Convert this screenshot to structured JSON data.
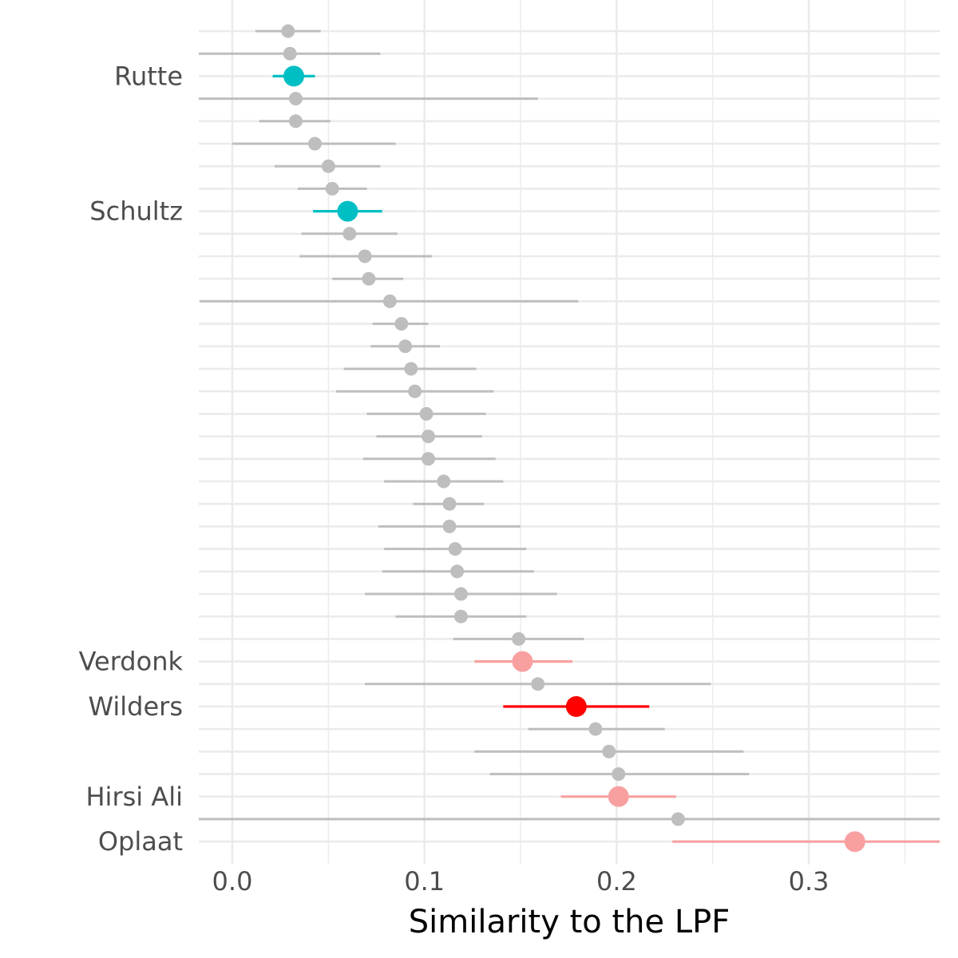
{
  "chart_data": {
    "type": "scatter",
    "subtype": "dot-and-whisker",
    "xlabel": "Similarity to the LPF",
    "ylabel": "",
    "xlim": [
      -0.02,
      0.37
    ],
    "x_ticks": [
      0.0,
      0.1,
      0.2,
      0.3
    ],
    "x_tick_labels": [
      "0.0",
      "0.1",
      "0.2",
      "0.3"
    ],
    "grid": true,
    "legend": "none",
    "colors": {
      "other": "#bebebe",
      "cyan": "#00bfc4",
      "pink": "#f8a0a0",
      "red": "#ff0000",
      "grid": "#ebebeb",
      "tick_text": "#4d4d4d",
      "title_text": "#000000"
    },
    "rows": [
      {
        "label": "",
        "value": 0.029,
        "low": 0.012,
        "high": 0.046,
        "group": "other"
      },
      {
        "label": "",
        "value": 0.03,
        "low": -0.02,
        "high": 0.077,
        "group": "other"
      },
      {
        "label": "Rutte",
        "value": 0.032,
        "low": 0.021,
        "high": 0.043,
        "group": "cyan"
      },
      {
        "label": "",
        "value": 0.033,
        "low": -0.02,
        "high": 0.159,
        "group": "other"
      },
      {
        "label": "",
        "value": 0.033,
        "low": 0.014,
        "high": 0.051,
        "group": "other"
      },
      {
        "label": "",
        "value": 0.043,
        "low": 0.0,
        "high": 0.085,
        "group": "other"
      },
      {
        "label": "",
        "value": 0.05,
        "low": 0.022,
        "high": 0.077,
        "group": "other"
      },
      {
        "label": "",
        "value": 0.052,
        "low": 0.034,
        "high": 0.07,
        "group": "other"
      },
      {
        "label": "Schultz",
        "value": 0.06,
        "low": 0.042,
        "high": 0.078,
        "group": "cyan"
      },
      {
        "label": "",
        "value": 0.061,
        "low": 0.036,
        "high": 0.086,
        "group": "other"
      },
      {
        "label": "",
        "value": 0.069,
        "low": 0.035,
        "high": 0.104,
        "group": "other"
      },
      {
        "label": "",
        "value": 0.071,
        "low": 0.052,
        "high": 0.089,
        "group": "other"
      },
      {
        "label": "",
        "value": 0.082,
        "low": -0.017,
        "high": 0.18,
        "group": "other"
      },
      {
        "label": "",
        "value": 0.088,
        "low": 0.073,
        "high": 0.102,
        "group": "other"
      },
      {
        "label": "",
        "value": 0.09,
        "low": 0.072,
        "high": 0.108,
        "group": "other"
      },
      {
        "label": "",
        "value": 0.093,
        "low": 0.058,
        "high": 0.127,
        "group": "other"
      },
      {
        "label": "",
        "value": 0.095,
        "low": 0.054,
        "high": 0.136,
        "group": "other"
      },
      {
        "label": "",
        "value": 0.101,
        "low": 0.07,
        "high": 0.132,
        "group": "other"
      },
      {
        "label": "",
        "value": 0.102,
        "low": 0.075,
        "high": 0.13,
        "group": "other"
      },
      {
        "label": "",
        "value": 0.102,
        "low": 0.068,
        "high": 0.137,
        "group": "other"
      },
      {
        "label": "",
        "value": 0.11,
        "low": 0.079,
        "high": 0.141,
        "group": "other"
      },
      {
        "label": "",
        "value": 0.113,
        "low": 0.094,
        "high": 0.131,
        "group": "other"
      },
      {
        "label": "",
        "value": 0.113,
        "low": 0.076,
        "high": 0.15,
        "group": "other"
      },
      {
        "label": "",
        "value": 0.116,
        "low": 0.079,
        "high": 0.153,
        "group": "other"
      },
      {
        "label": "",
        "value": 0.117,
        "low": 0.078,
        "high": 0.157,
        "group": "other"
      },
      {
        "label": "",
        "value": 0.119,
        "low": 0.069,
        "high": 0.169,
        "group": "other"
      },
      {
        "label": "",
        "value": 0.119,
        "low": 0.085,
        "high": 0.153,
        "group": "other"
      },
      {
        "label": "",
        "value": 0.149,
        "low": 0.115,
        "high": 0.183,
        "group": "other"
      },
      {
        "label": "Verdonk",
        "value": 0.151,
        "low": 0.126,
        "high": 0.177,
        "group": "pink"
      },
      {
        "label": "",
        "value": 0.159,
        "low": 0.069,
        "high": 0.249,
        "group": "other"
      },
      {
        "label": "Wilders",
        "value": 0.179,
        "low": 0.141,
        "high": 0.217,
        "group": "red"
      },
      {
        "label": "",
        "value": 0.189,
        "low": 0.154,
        "high": 0.225,
        "group": "other"
      },
      {
        "label": "",
        "value": 0.196,
        "low": 0.126,
        "high": 0.266,
        "group": "other"
      },
      {
        "label": "",
        "value": 0.201,
        "low": 0.134,
        "high": 0.269,
        "group": "other"
      },
      {
        "label": "Hirsi Ali",
        "value": 0.201,
        "low": 0.171,
        "high": 0.231,
        "group": "pink"
      },
      {
        "label": "",
        "value": 0.232,
        "low": -0.02,
        "high": 0.37,
        "group": "other"
      },
      {
        "label": "Oplaat",
        "value": 0.324,
        "low": 0.229,
        "high": 0.37,
        "group": "pink"
      }
    ]
  }
}
